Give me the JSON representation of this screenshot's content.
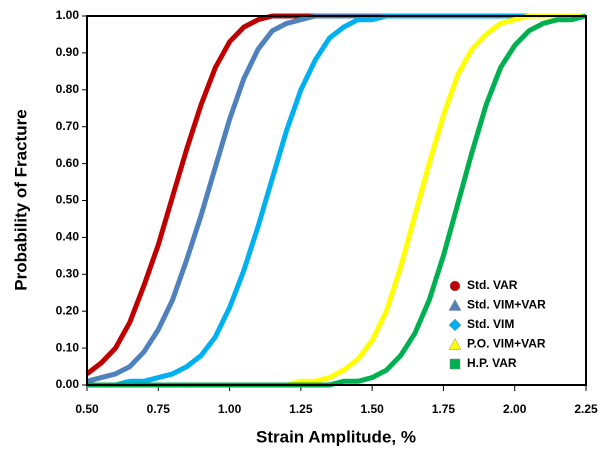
{
  "chart_data": {
    "type": "line",
    "xlabel": "Strain Amplitude, %",
    "ylabel": "Probability of Fracture",
    "x": [
      0.5,
      0.55,
      0.6,
      0.65,
      0.7,
      0.75,
      0.8,
      0.85,
      0.9,
      0.95,
      1.0,
      1.05,
      1.1,
      1.15,
      1.2,
      1.25,
      1.3,
      1.35,
      1.4,
      1.45,
      1.5,
      1.55,
      1.6,
      1.65,
      1.7,
      1.75,
      1.8,
      1.85,
      1.9,
      1.95,
      2.0,
      2.05,
      2.1,
      2.15,
      2.2,
      2.25
    ],
    "series": [
      {
        "name": "Std. VAR",
        "color": "#c00000",
        "marker": "circle",
        "values": [
          0.03,
          0.06,
          0.1,
          0.17,
          0.27,
          0.38,
          0.51,
          0.64,
          0.76,
          0.86,
          0.93,
          0.97,
          0.99,
          1,
          1,
          1,
          1,
          1,
          1,
          1,
          1,
          1,
          1,
          1,
          1,
          1,
          1,
          1,
          1,
          1,
          1,
          1,
          1,
          1,
          1,
          1
        ]
      },
      {
        "name": "Std. VIM+VAR",
        "color": "#4f81bd",
        "marker": "triangle",
        "values": [
          0.01,
          0.02,
          0.03,
          0.05,
          0.09,
          0.15,
          0.23,
          0.34,
          0.46,
          0.59,
          0.72,
          0.83,
          0.91,
          0.96,
          0.98,
          0.99,
          1,
          1,
          1,
          1,
          1,
          1,
          1,
          1,
          1,
          1,
          1,
          1,
          1,
          1,
          1,
          1,
          1,
          1,
          1,
          1
        ]
      },
      {
        "name": "Std. VIM",
        "color": "#00b0f0",
        "marker": "diamond",
        "values": [
          0,
          0,
          0,
          0.01,
          0.01,
          0.02,
          0.03,
          0.05,
          0.08,
          0.13,
          0.21,
          0.31,
          0.43,
          0.56,
          0.69,
          0.8,
          0.88,
          0.94,
          0.97,
          0.99,
          0.99,
          1,
          1,
          1,
          1,
          1,
          1,
          1,
          1,
          1,
          1,
          1,
          1,
          1,
          1,
          1
        ]
      },
      {
        "name": "P.O. VIM+VAR",
        "color": "#ffff00",
        "marker": "triangle",
        "values": [
          0,
          0,
          0,
          0,
          0,
          0,
          0,
          0,
          0,
          0,
          0,
          0,
          0,
          0,
          0,
          0.01,
          0.01,
          0.02,
          0.04,
          0.07,
          0.12,
          0.2,
          0.32,
          0.46,
          0.6,
          0.73,
          0.84,
          0.91,
          0.95,
          0.98,
          0.99,
          1,
          1,
          1,
          1,
          1
        ]
      },
      {
        "name": "H.P. VAR",
        "color": "#00b050",
        "marker": "square",
        "values": [
          0,
          0,
          0,
          0,
          0,
          0,
          0,
          0,
          0,
          0,
          0,
          0,
          0,
          0,
          0,
          0,
          0,
          0,
          0.01,
          0.01,
          0.02,
          0.04,
          0.08,
          0.14,
          0.23,
          0.35,
          0.49,
          0.63,
          0.76,
          0.86,
          0.92,
          0.96,
          0.98,
          0.99,
          0.99,
          1
        ]
      }
    ],
    "xlim": [
      0.5,
      2.25
    ],
    "xticks": [
      {
        "value": 0.5,
        "label": "0.50"
      },
      {
        "value": 0.75,
        "label": "0.75"
      },
      {
        "value": 1.0,
        "label": "1.00"
      },
      {
        "value": 1.25,
        "label": "1.25"
      },
      {
        "value": 1.5,
        "label": "1.50"
      },
      {
        "value": 1.75,
        "label": "1.75"
      },
      {
        "value": 2.0,
        "label": "2.00"
      },
      {
        "value": 2.25,
        "label": "2.25"
      }
    ],
    "ylim": [
      0,
      1
    ],
    "yticks": [
      {
        "value": 0,
        "label": "0.00"
      },
      {
        "value": 0.1,
        "label": "0.10"
      },
      {
        "value": 0.2,
        "label": "0.20"
      },
      {
        "value": 0.3,
        "label": "0.30"
      },
      {
        "value": 0.4,
        "label": "0.40"
      },
      {
        "value": 0.5,
        "label": "0.50"
      },
      {
        "value": 0.6,
        "label": "0.60"
      },
      {
        "value": 0.7,
        "label": "0.70"
      },
      {
        "value": 0.8,
        "label": "0.80"
      },
      {
        "value": 0.9,
        "label": "0.90"
      },
      {
        "value": 1.0,
        "label": "1.00"
      }
    ],
    "grid": false,
    "legend": "lower right"
  }
}
